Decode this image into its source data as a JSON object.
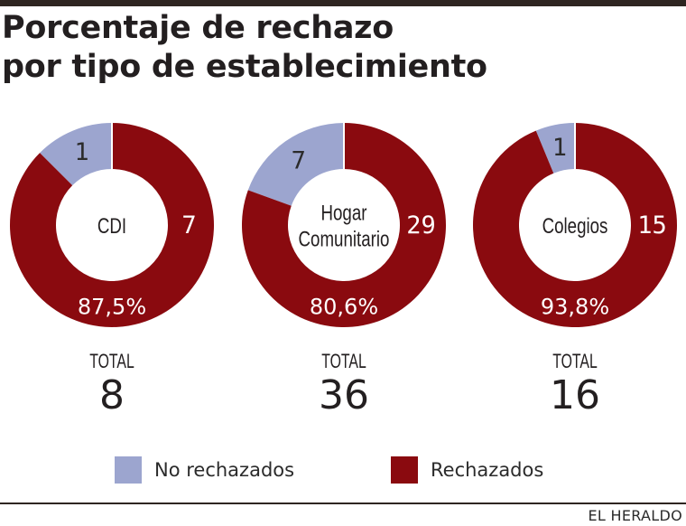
{
  "title_lines": [
    "Porcentaje de rechazo",
    "por tipo de establecimiento"
  ],
  "credit": "EL HERALDO",
  "colors": {
    "no_rechazados": "#9ca5cf",
    "rechazados": "#8a0a0f",
    "rule": "#2e2521"
  },
  "legend": [
    {
      "label": "No rechazados",
      "color": "#9ca5cf"
    },
    {
      "label": "Rechazados",
      "color": "#8a0a0f"
    }
  ],
  "chart_data": [
    {
      "type": "pie",
      "title": "CDI",
      "center_label": [
        "CDI"
      ],
      "slices": [
        {
          "name": "No rechazados",
          "value": 1,
          "label": "1"
        },
        {
          "name": "Rechazados",
          "value": 7,
          "label": "7"
        }
      ],
      "percent_label": "87,5%",
      "total_caption": "TOTAL",
      "total": "8"
    },
    {
      "type": "pie",
      "title": "Hogar Comunitario",
      "center_label": [
        "Hogar",
        "Comunitario"
      ],
      "slices": [
        {
          "name": "No rechazados",
          "value": 7,
          "label": "7"
        },
        {
          "name": "Rechazados",
          "value": 29,
          "label": "29"
        }
      ],
      "percent_label": "80,6%",
      "total_caption": "TOTAL",
      "total": "36"
    },
    {
      "type": "pie",
      "title": "Colegios",
      "center_label": [
        "Colegios"
      ],
      "slices": [
        {
          "name": "No rechazados",
          "value": 1,
          "label": "1"
        },
        {
          "name": "Rechazados",
          "value": 15,
          "label": "15"
        }
      ],
      "percent_label": "93,8%",
      "total_caption": "TOTAL",
      "total": "16"
    }
  ]
}
